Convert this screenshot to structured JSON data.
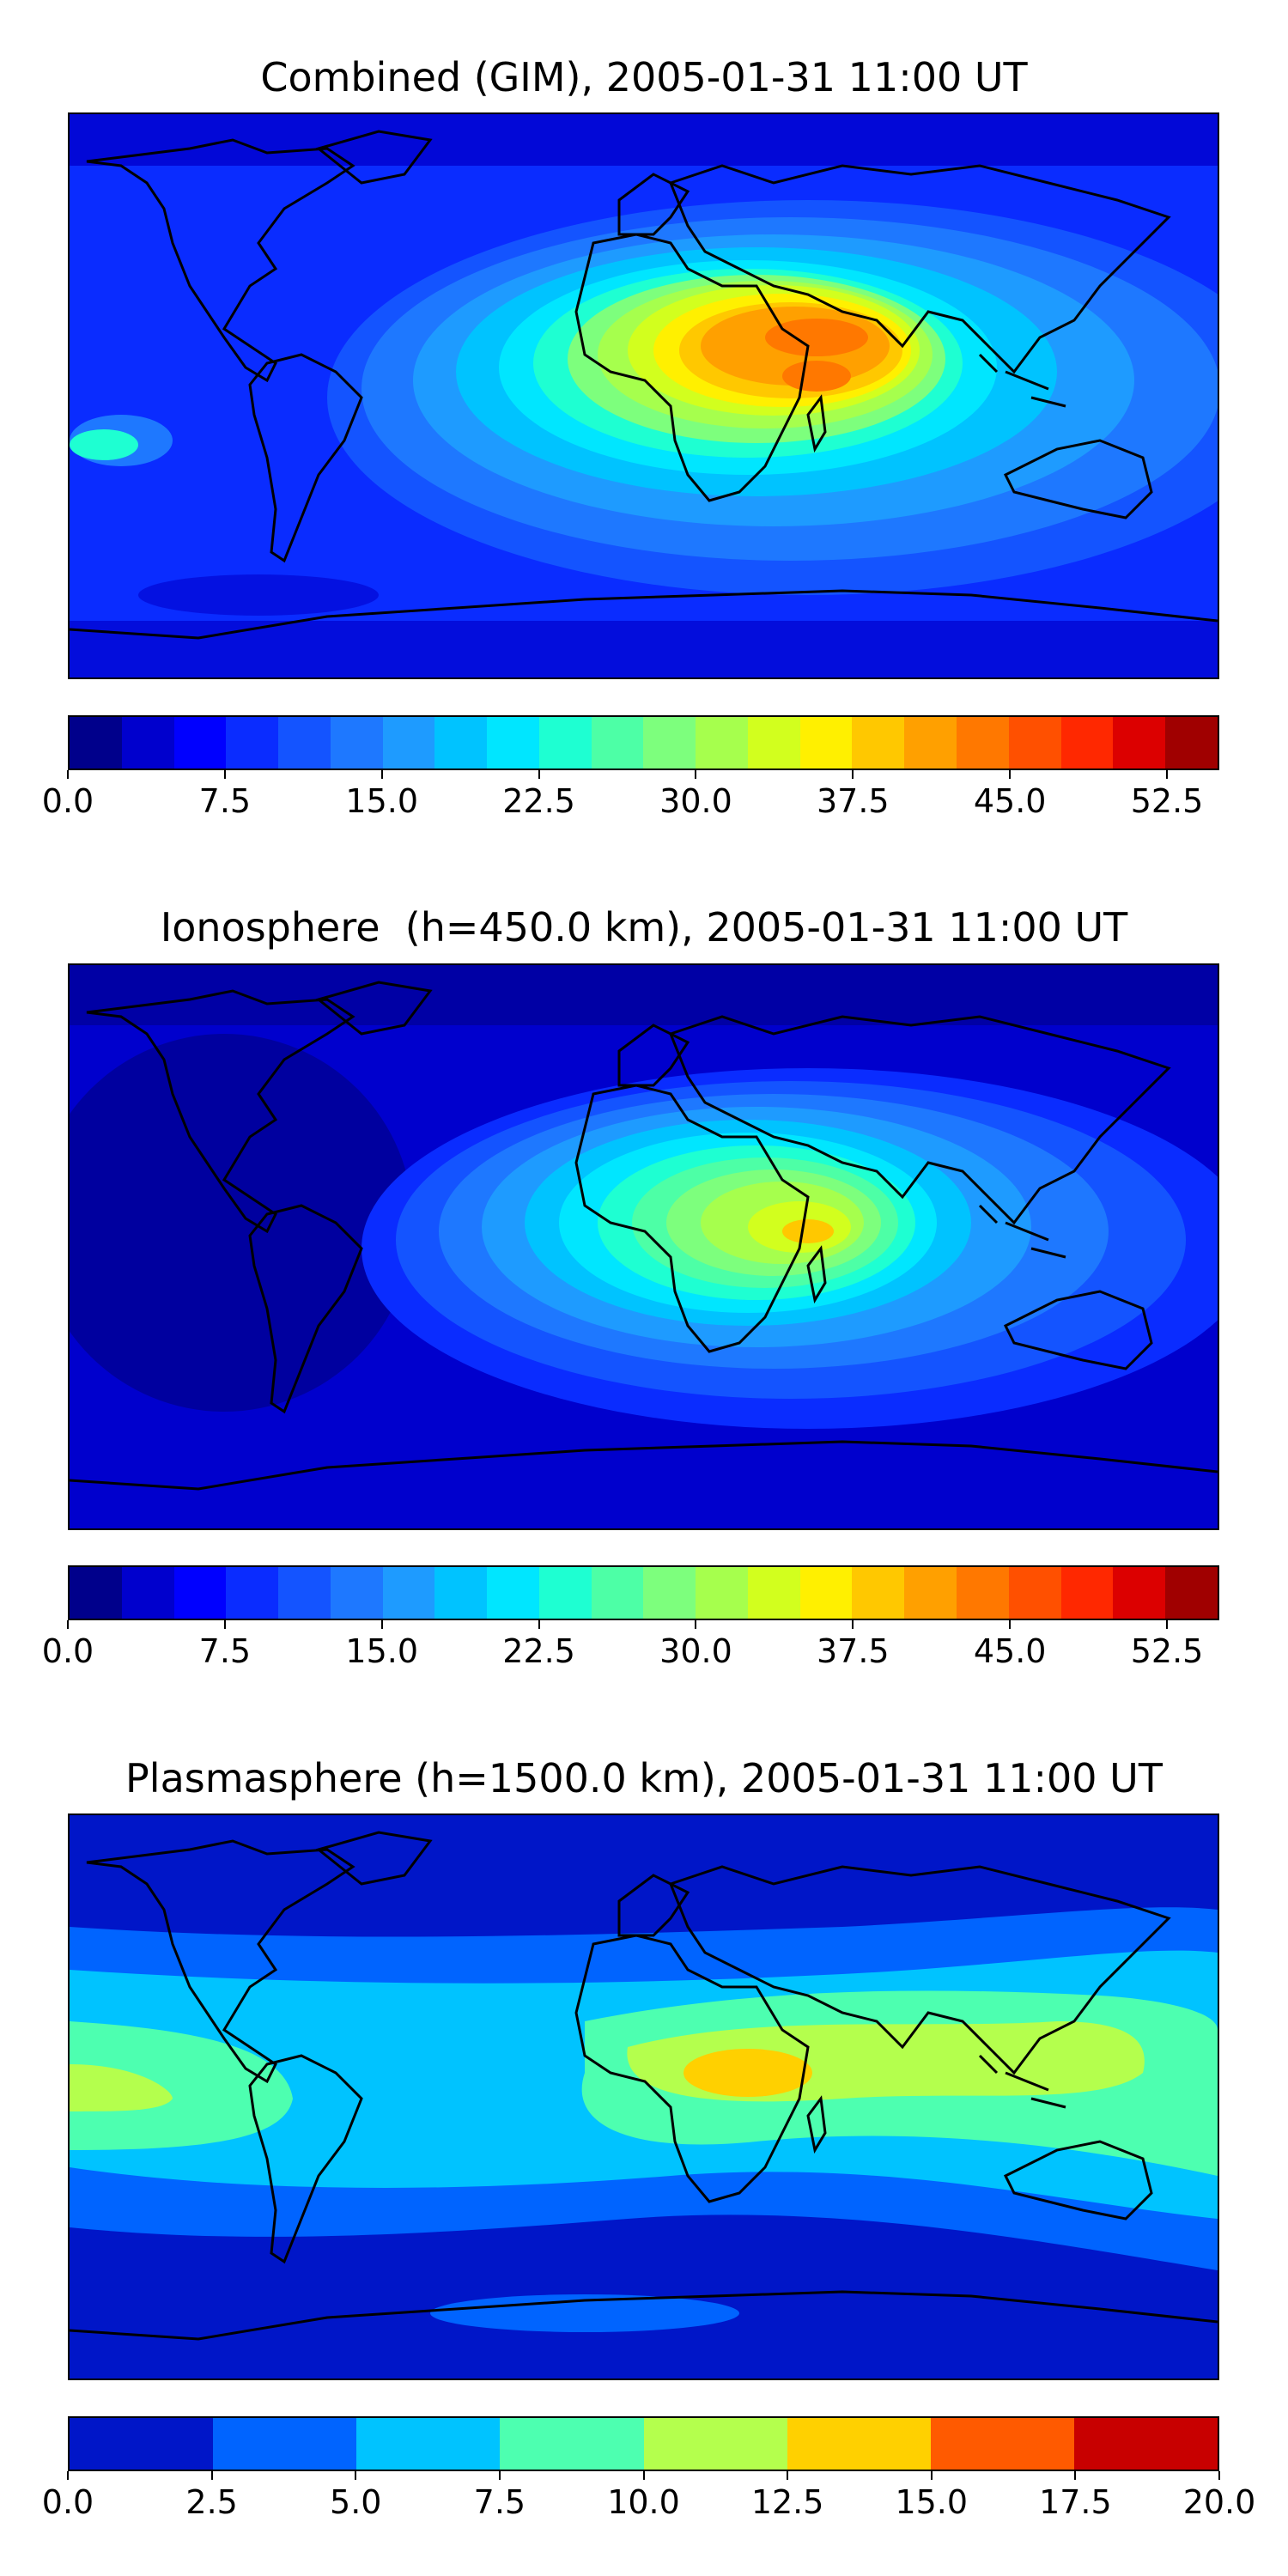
{
  "panels": [
    {
      "id": "combined",
      "title": "Combined (GIM), 2005-01-31 11:00 UT",
      "colorbar": {
        "colors": [
          "#00008b",
          "#0000cd",
          "#0000ff",
          "#0a2cff",
          "#1454ff",
          "#1e78ff",
          "#1e9bff",
          "#00c3ff",
          "#00e6ff",
          "#1effd2",
          "#4dffa6",
          "#7dff7d",
          "#a6ff4d",
          "#d2ff1e",
          "#fff000",
          "#ffc800",
          "#ffa000",
          "#ff7800",
          "#ff5000",
          "#ff2800",
          "#dc0000",
          "#a00000"
        ],
        "tick_labels": [
          "0.0",
          "7.5",
          "15.0",
          "22.5",
          "30.0",
          "37.5",
          "45.0",
          "52.5"
        ],
        "ticks": [
          0,
          7.5,
          15.0,
          22.5,
          30.0,
          37.5,
          45.0,
          52.5
        ],
        "range": [
          0,
          55
        ]
      }
    },
    {
      "id": "ionosphere",
      "title": "Ionosphere  (h=450.0 km), 2005-01-31 11:00 UT",
      "colorbar": {
        "colors": [
          "#00008b",
          "#0000cd",
          "#0000ff",
          "#0a2cff",
          "#1454ff",
          "#1e78ff",
          "#1e9bff",
          "#00c3ff",
          "#00e6ff",
          "#1effd2",
          "#4dffa6",
          "#7dff7d",
          "#a6ff4d",
          "#d2ff1e",
          "#fff000",
          "#ffc800",
          "#ffa000",
          "#ff7800",
          "#ff5000",
          "#ff2800",
          "#dc0000",
          "#a00000"
        ],
        "tick_labels": [
          "0.0",
          "7.5",
          "15.0",
          "22.5",
          "30.0",
          "37.5",
          "45.0",
          "52.5"
        ],
        "ticks": [
          0,
          7.5,
          15.0,
          22.5,
          30.0,
          37.5,
          45.0,
          52.5
        ],
        "range": [
          0,
          55
        ]
      }
    },
    {
      "id": "plasmasphere",
      "title": "Plasmasphere (h=1500.0 km), 2005-01-31 11:00 UT",
      "colorbar": {
        "colors": [
          "#0016c8",
          "#0064ff",
          "#00c3ff",
          "#4dffb0",
          "#b4ff4d",
          "#ffd000",
          "#ff5a00",
          "#c80000"
        ],
        "tick_labels": [
          "0.0",
          "2.5",
          "5.0",
          "7.5",
          "10.0",
          "12.5",
          "15.0",
          "17.5",
          "20.0"
        ],
        "ticks": [
          0,
          2.5,
          5.0,
          7.5,
          10.0,
          12.5,
          15.0,
          17.5,
          20.0
        ],
        "range": [
          0,
          20
        ]
      }
    }
  ]
}
